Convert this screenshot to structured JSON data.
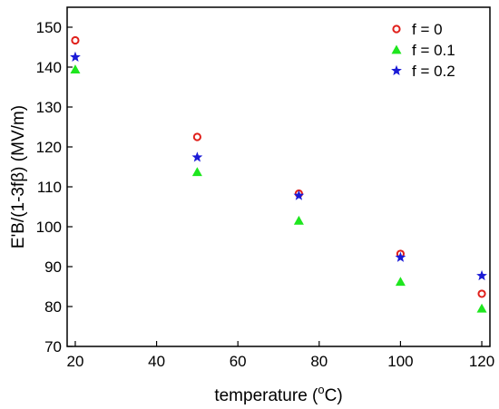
{
  "chart_data": {
    "type": "scatter",
    "xlabel": "temperature (",
    "xlabel_sup": "o",
    "xlabel_unit": "C)",
    "ylabel": "E'B/(1-3fβ) (MV/m)",
    "xlim": [
      18,
      122
    ],
    "ylim": [
      70,
      155
    ],
    "x_ticks": [
      20,
      40,
      60,
      80,
      100,
      120
    ],
    "y_ticks": [
      70,
      80,
      90,
      100,
      110,
      120,
      130,
      140,
      150
    ],
    "legend_position": "top-right",
    "series": [
      {
        "name": "f = 0",
        "marker": "circle-open",
        "color": "#e0201b",
        "x": [
          20,
          50,
          75,
          100,
          120
        ],
        "y": [
          146.7,
          122.5,
          108.3,
          93.2,
          83.2
        ]
      },
      {
        "name": "f = 0.1",
        "marker": "triangle",
        "color": "#1ee61e",
        "x": [
          20,
          50,
          75,
          100,
          120
        ],
        "y": [
          139.4,
          113.7,
          101.5,
          86.2,
          79.5
        ]
      },
      {
        "name": "f = 0.2",
        "marker": "star",
        "color": "#1a1ad6",
        "x": [
          20,
          50,
          75,
          100,
          120
        ],
        "y": [
          142.5,
          117.4,
          107.8,
          92.3,
          87.7
        ]
      }
    ]
  }
}
